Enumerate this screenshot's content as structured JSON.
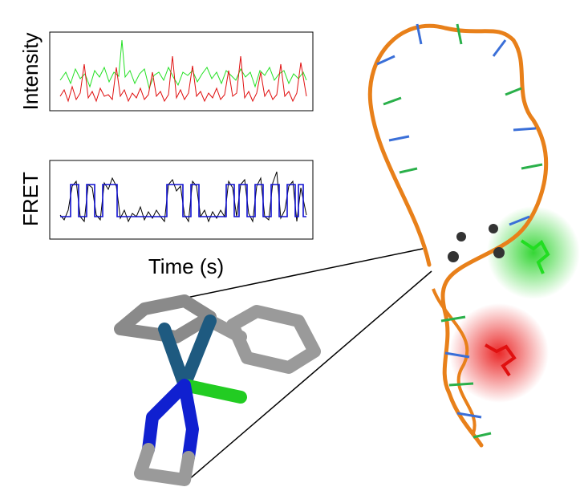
{
  "labels": {
    "intensity": "Intensity",
    "fret": "FRET",
    "time": "Time (s)"
  }
}
